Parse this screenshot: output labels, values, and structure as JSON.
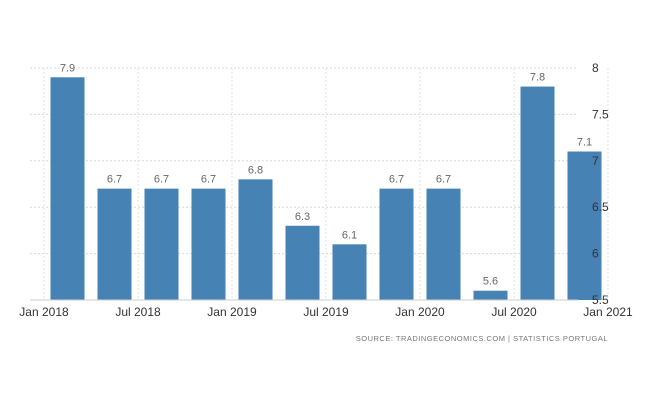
{
  "chart_data": {
    "type": "bar",
    "categories": [
      "Q1 2018",
      "Q2 2018",
      "Q3 2018",
      "Q4 2018",
      "Q1 2019",
      "Q2 2019",
      "Q3 2019",
      "Q4 2019",
      "Q1 2020",
      "Q2 2020",
      "Q3 2020",
      "Q4 2020"
    ],
    "values": [
      7.9,
      6.7,
      6.7,
      6.7,
      6.8,
      6.3,
      6.1,
      6.7,
      6.7,
      5.6,
      7.8,
      7.1
    ],
    "data_labels": [
      "7.9",
      "6.7",
      "6.7",
      "6.7",
      "6.8",
      "6.3",
      "6.1",
      "6.7",
      "6.7",
      "5.6",
      "7.8",
      "7.1"
    ],
    "ylim": [
      5.5,
      8
    ],
    "yticks": [
      5.5,
      6,
      6.5,
      7,
      7.5,
      8
    ],
    "ytick_labels": [
      "5.5",
      "6",
      "6.5",
      "7",
      "7.5",
      "8"
    ],
    "xtick_labels": [
      {
        "label": "Jan 2018",
        "pos": 0
      },
      {
        "label": "Jul 2018",
        "pos": 2
      },
      {
        "label": "Jan 2019",
        "pos": 4
      },
      {
        "label": "Jul 2019",
        "pos": 6
      },
      {
        "label": "Jan 2020",
        "pos": 8
      },
      {
        "label": "Jul 2020",
        "pos": 10
      },
      {
        "label": "Jan 2021",
        "pos": 12
      }
    ],
    "grid": true,
    "bar_color": "#4682b4",
    "source": "SOURCE: TRADINGECONOMICS.COM  |  STATISTICS PORTUGAL"
  }
}
